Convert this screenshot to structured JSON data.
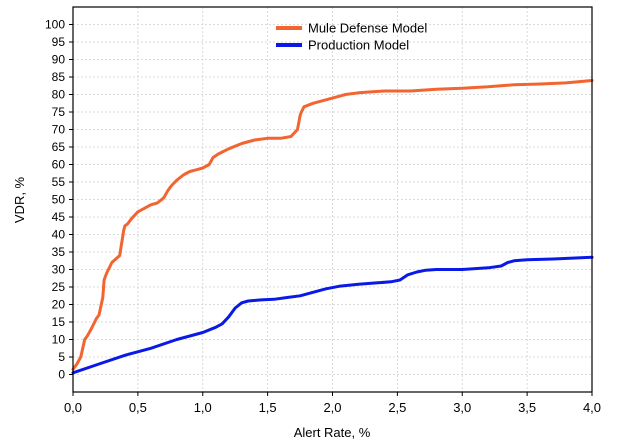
{
  "chart_data": {
    "type": "line",
    "xlabel": "Alert Rate, %",
    "ylabel": "VDR, %",
    "xlim": [
      0,
      4
    ],
    "ylim": [
      -5,
      105
    ],
    "xticks": [
      "0,0",
      "0,5",
      "1,0",
      "1,5",
      "2,0",
      "2,5",
      "3,0",
      "3,5",
      "4,0"
    ],
    "yticks": [
      "0",
      "5",
      "10",
      "15",
      "20",
      "25",
      "30",
      "35",
      "40",
      "45",
      "50",
      "55",
      "60",
      "65",
      "70",
      "75",
      "80",
      "85",
      "90",
      "95",
      "100"
    ],
    "grid": true,
    "legend_position": "top-center",
    "series": [
      {
        "name": "Mule Defense Model",
        "color": "#f26430",
        "x": [
          0.0,
          0.03,
          0.06,
          0.09,
          0.11,
          0.14,
          0.18,
          0.2,
          0.23,
          0.24,
          0.26,
          0.3,
          0.33,
          0.36,
          0.39,
          0.4,
          0.42,
          0.45,
          0.5,
          0.55,
          0.6,
          0.65,
          0.7,
          0.73,
          0.76,
          0.8,
          0.85,
          0.9,
          0.95,
          1.0,
          1.05,
          1.08,
          1.12,
          1.2,
          1.3,
          1.4,
          1.5,
          1.6,
          1.68,
          1.73,
          1.75,
          1.76,
          1.78,
          1.85,
          1.95,
          2.05,
          2.1,
          2.2,
          2.4,
          2.6,
          2.8,
          3.0,
          3.2,
          3.4,
          3.6,
          3.8,
          4.0
        ],
        "y": [
          1.5,
          3,
          5,
          10,
          11,
          13,
          16,
          17,
          22,
          27,
          29,
          32,
          33,
          34,
          41,
          42.5,
          43,
          44.5,
          46.5,
          47.5,
          48.5,
          49,
          50.5,
          52.5,
          54,
          55.5,
          57,
          58,
          58.5,
          59,
          60,
          62,
          63,
          64.5,
          66,
          67,
          67.5,
          67.5,
          68,
          70,
          74,
          75,
          76.5,
          77.5,
          78.5,
          79.5,
          80,
          80.5,
          81,
          81,
          81.5,
          81.8,
          82.2,
          82.8,
          83,
          83.3,
          84
        ]
      },
      {
        "name": "Production Model",
        "color": "#0a1ae6",
        "x": [
          0.0,
          0.2,
          0.4,
          0.6,
          0.8,
          1.0,
          1.1,
          1.15,
          1.2,
          1.25,
          1.3,
          1.35,
          1.45,
          1.55,
          1.65,
          1.75,
          1.85,
          1.95,
          2.05,
          2.2,
          2.35,
          2.45,
          2.52,
          2.58,
          2.65,
          2.72,
          2.8,
          3.0,
          3.2,
          3.3,
          3.35,
          3.4,
          3.5,
          3.7,
          4.0
        ],
        "y": [
          0.5,
          3,
          5.5,
          7.5,
          10,
          12,
          13.5,
          14.5,
          16.5,
          19,
          20.5,
          21,
          21.3,
          21.5,
          22,
          22.5,
          23.5,
          24.5,
          25.2,
          25.8,
          26.2,
          26.5,
          27,
          28.5,
          29.3,
          29.8,
          30,
          30,
          30.5,
          31,
          32,
          32.5,
          32.8,
          33,
          33.5
        ]
      }
    ]
  }
}
